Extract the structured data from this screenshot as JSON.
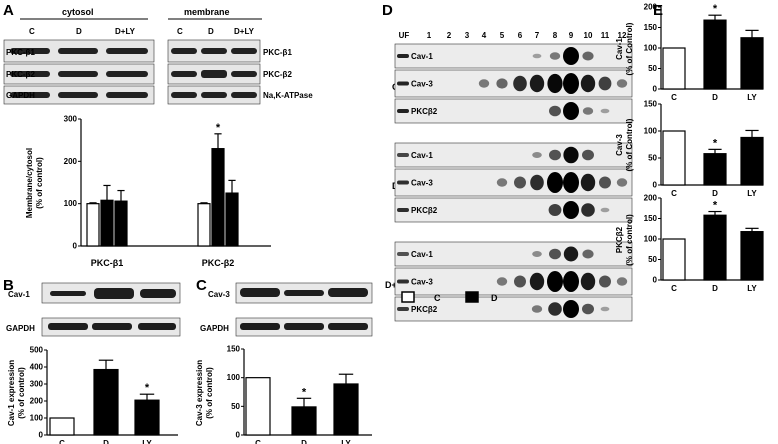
{
  "panel_letters": [
    "A",
    "B",
    "C",
    "D",
    "E"
  ],
  "panel_a": {
    "blot_headers": [
      "cytosol",
      "membrane"
    ],
    "lane_labels": [
      "C",
      "D",
      "D+LY"
    ],
    "row_labels_left": [
      "PKC-β1",
      "PKC-β2",
      "GAPDH"
    ],
    "row_labels_right": [
      "PKC-β1",
      "PKC-β2",
      "Na,K-ATPase"
    ]
  },
  "panel_b": {
    "blot_rows": [
      "Cav-1",
      "GAPDH"
    ]
  },
  "panel_c": {
    "blot_rows": [
      "Cav-3",
      "GAPDH"
    ]
  },
  "panel_d": {
    "column_labels": [
      "UF",
      "1",
      "2",
      "3",
      "4",
      "5",
      "6",
      "7",
      "8",
      "9",
      "10",
      "11",
      "12"
    ],
    "groups": [
      {
        "name": "C",
        "rows": [
          "Cav-1",
          "Cav-3",
          "PKCβ2"
        ]
      },
      {
        "name": "D",
        "rows": [
          "Cav-1",
          "Cav-3",
          "PKCβ2"
        ]
      },
      {
        "name": "D+LY",
        "rows": [
          "Cav-1",
          "Cav-3",
          "PKCβ2"
        ]
      }
    ],
    "legend": [
      {
        "label": "C",
        "fill": "#ffffff"
      },
      {
        "label": "D",
        "fill": "#000000"
      }
    ]
  },
  "chart_data": [
    {
      "id": "A",
      "type": "bar",
      "ylabel": "Membrane/cytosol (% of control)",
      "ylim": [
        0,
        300
      ],
      "yticks": [
        0,
        100,
        200,
        300
      ],
      "categories": [
        "PKC-β1",
        "PKC-β2"
      ],
      "series": [
        {
          "values": [
            100,
            100
          ],
          "errors": [
            2,
            2
          ],
          "fill": "#ffffff"
        },
        {
          "values": [
            108,
            230
          ],
          "errors": [
            35,
            35
          ],
          "fill": "#000000"
        },
        {
          "values": [
            106,
            125
          ],
          "errors": [
            25,
            30
          ],
          "fill": "#000000"
        }
      ],
      "significance": [
        {
          "category": 1,
          "series": 1,
          "mark": "*"
        }
      ]
    },
    {
      "id": "B",
      "type": "bar",
      "ylabel": "Cav-1 expression (% of control)",
      "ylim": [
        0,
        500
      ],
      "yticks": [
        0,
        100,
        200,
        300,
        400,
        500
      ],
      "categories": [
        "C",
        "D",
        "LY"
      ],
      "values": [
        100,
        385,
        205
      ],
      "errors": [
        0,
        55,
        35
      ],
      "fills": [
        "#ffffff",
        "#000000",
        "#000000"
      ],
      "significance": [
        {
          "index": 2,
          "mark": "*"
        }
      ]
    },
    {
      "id": "C",
      "type": "bar",
      "ylabel": "Cav-3 expression (% of control)",
      "ylim": [
        0,
        150
      ],
      "yticks": [
        0,
        50,
        100,
        150
      ],
      "categories": [
        "C",
        "D",
        "LY"
      ],
      "values": [
        100,
        49,
        89
      ],
      "errors": [
        0,
        15,
        17
      ],
      "fills": [
        "#ffffff",
        "#000000",
        "#000000"
      ],
      "significance": [
        {
          "index": 1,
          "mark": "*"
        }
      ]
    },
    {
      "id": "E1",
      "type": "bar",
      "ylabel": "Cav-1 (% of Control)",
      "ylim": [
        0,
        200
      ],
      "yticks": [
        0,
        50,
        100,
        150,
        200
      ],
      "categories": [
        "C",
        "D",
        "LY"
      ],
      "values": [
        100,
        168,
        125
      ],
      "errors": [
        0,
        12,
        18
      ],
      "fills": [
        "#ffffff",
        "#000000",
        "#000000"
      ],
      "significance": [
        {
          "index": 1,
          "mark": "*"
        }
      ]
    },
    {
      "id": "E2",
      "type": "bar",
      "ylabel": "Cav-3 (% of Control)",
      "ylim": [
        0,
        150
      ],
      "yticks": [
        0,
        50,
        100,
        150
      ],
      "categories": [
        "C",
        "D",
        "LY"
      ],
      "values": [
        100,
        58,
        88
      ],
      "errors": [
        0,
        8,
        13
      ],
      "fills": [
        "#ffffff",
        "#000000",
        "#000000"
      ],
      "significance": [
        {
          "index": 1,
          "mark": "*"
        }
      ]
    },
    {
      "id": "E3",
      "type": "bar",
      "ylabel": "PKCβ2 (% of control)",
      "ylim": [
        0,
        200
      ],
      "yticks": [
        0,
        50,
        100,
        150,
        200
      ],
      "categories": [
        "C",
        "D",
        "LY"
      ],
      "values": [
        100,
        158,
        118
      ],
      "errors": [
        0,
        9,
        8
      ],
      "fills": [
        "#ffffff",
        "#000000",
        "#000000"
      ],
      "significance": [
        {
          "index": 1,
          "mark": "*"
        }
      ]
    }
  ]
}
